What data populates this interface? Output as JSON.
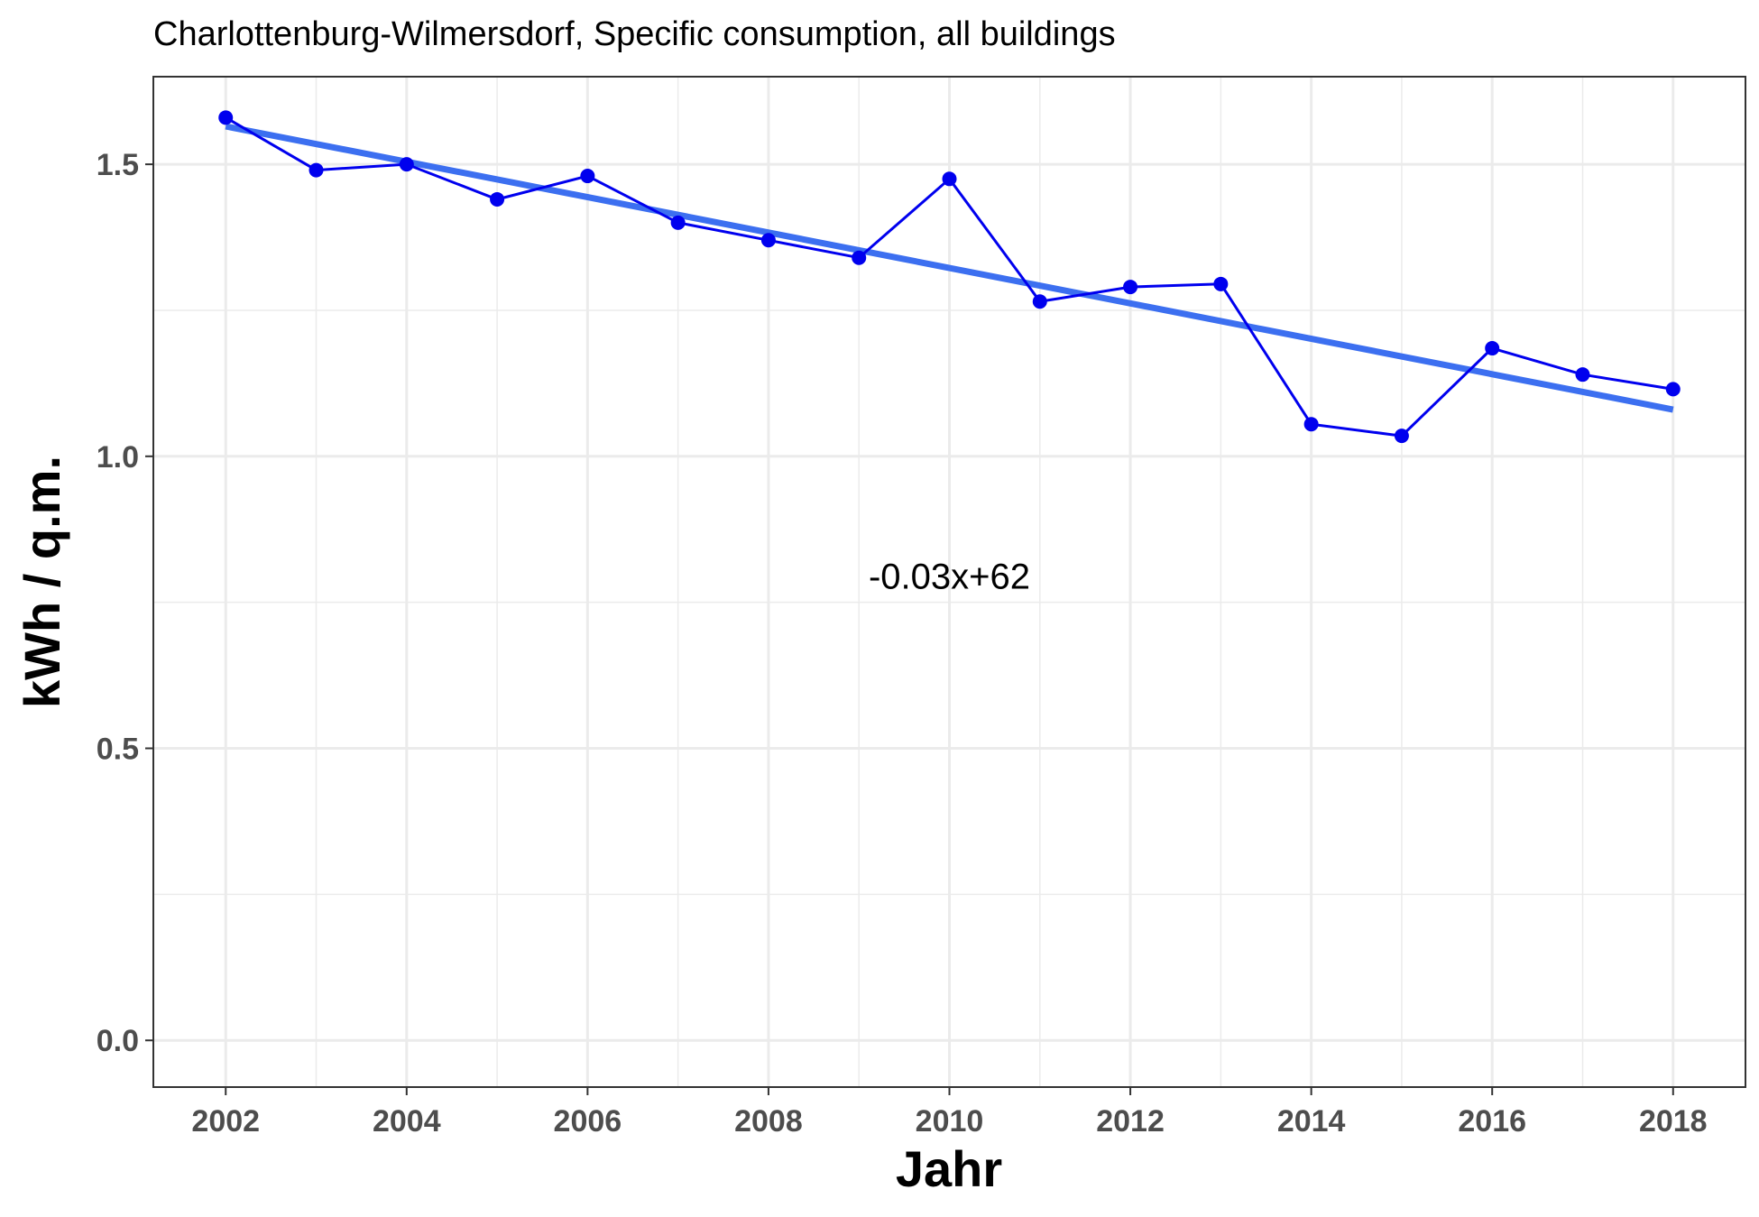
{
  "chart_data": {
    "type": "line",
    "title": "Charlottenburg-Wilmersdorf, Specific consumption, all buildings",
    "xlabel": "Jahr",
    "ylabel": "kWh / q.m.",
    "xlim": [
      2001.2,
      2018.8
    ],
    "ylim": [
      -0.08,
      1.65
    ],
    "x_ticks": [
      2002,
      2004,
      2006,
      2008,
      2010,
      2012,
      2014,
      2016,
      2018
    ],
    "x_tick_labels": [
      "2002",
      "2004",
      "2006",
      "2008",
      "2010",
      "2012",
      "2014",
      "2016",
      "2018"
    ],
    "x_minor_ticks": [
      2003,
      2005,
      2007,
      2009,
      2011,
      2013,
      2015,
      2017
    ],
    "y_ticks": [
      0.0,
      0.5,
      1.0,
      1.5
    ],
    "y_tick_labels": [
      "0.0",
      "0.5",
      "1.0",
      "1.5"
    ],
    "y_minor_ticks": [
      0.25,
      0.75,
      1.25
    ],
    "grid": true,
    "series": [
      {
        "x": [
          2002,
          2003,
          2004,
          2005,
          2006,
          2007,
          2008,
          2009,
          2010,
          2011,
          2012,
          2013,
          2014,
          2015,
          2016,
          2017,
          2018
        ],
        "values": [
          1.58,
          1.49,
          1.5,
          1.44,
          1.48,
          1.4,
          1.37,
          1.34,
          1.475,
          1.265,
          1.29,
          1.295,
          1.055,
          1.035,
          1.185,
          1.14,
          1.115
        ],
        "color": "#0000ee"
      }
    ],
    "trend_line": {
      "x": [
        2002,
        2018
      ],
      "values": [
        1.565,
        1.08
      ],
      "color": "#3c6ff0"
    },
    "annotation": {
      "text": "-0.03x+62",
      "x": 2010,
      "y": 0.795
    }
  }
}
